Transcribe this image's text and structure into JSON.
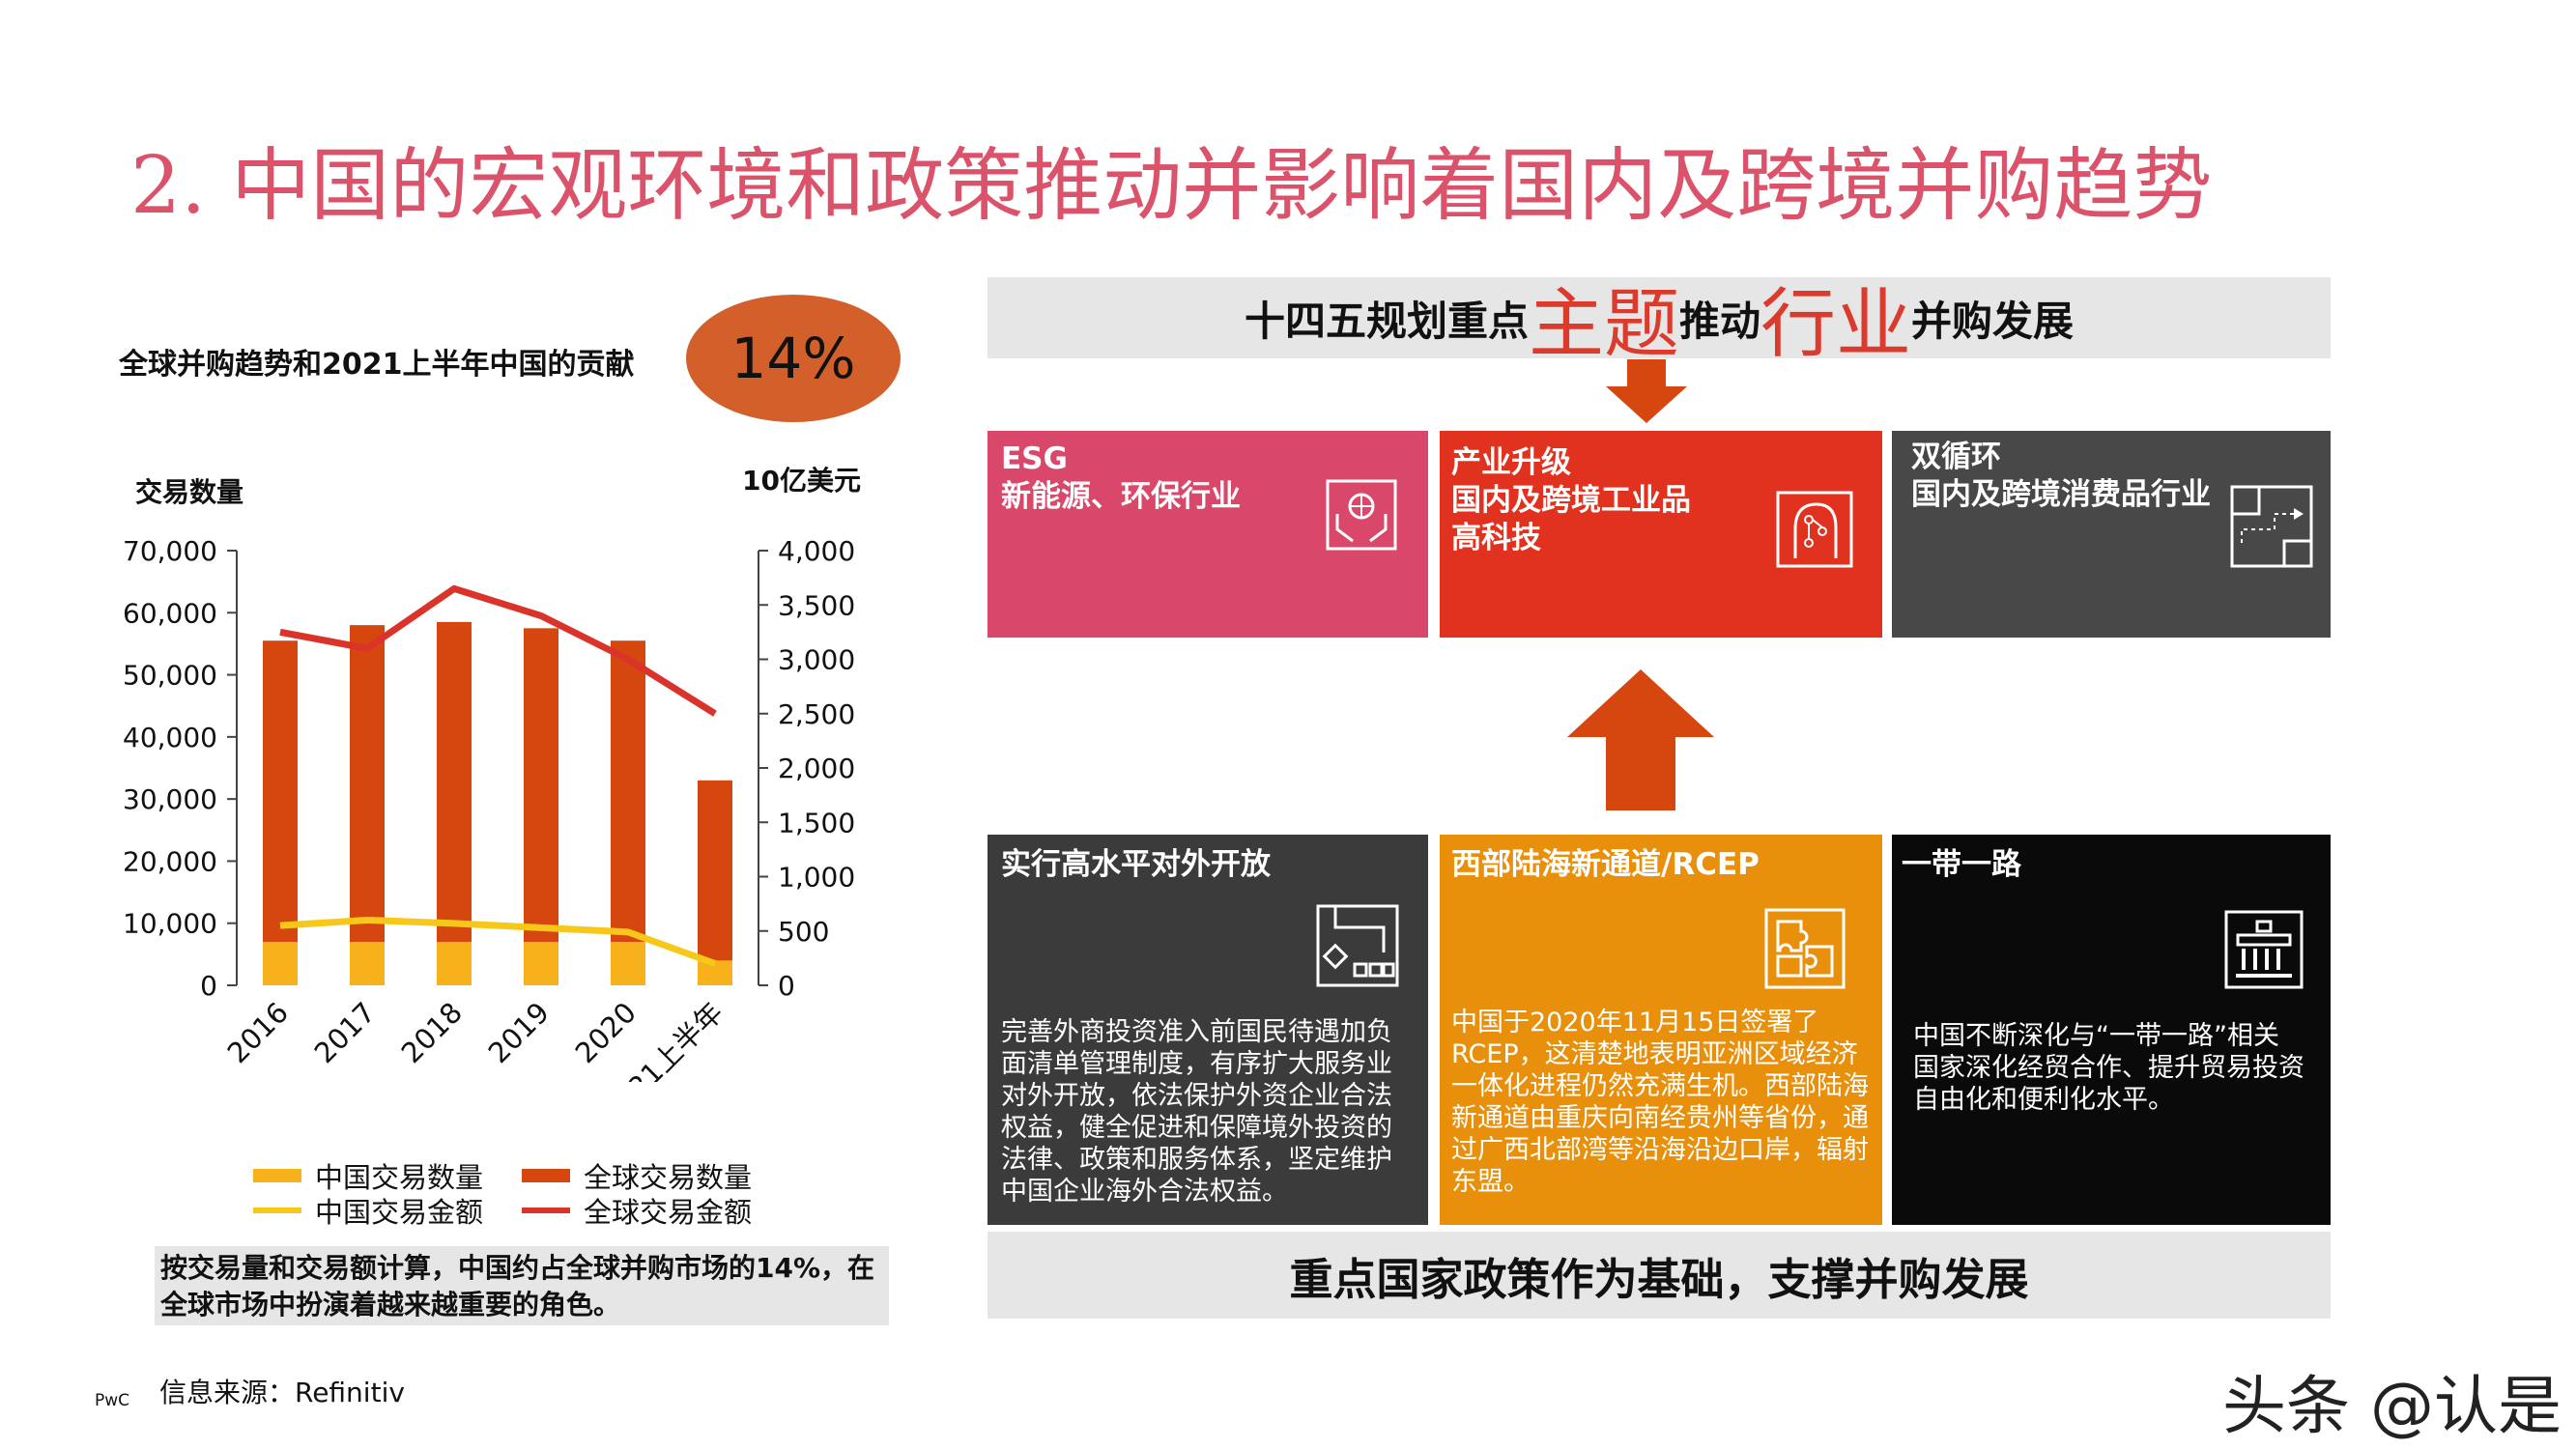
{
  "page": {
    "title": "2. 中国的宏观环境和政策推动并影响着国内及跨境并购趋势",
    "pwc": "PwC",
    "source": "信息来源：Refinitiv",
    "watermark": "头条 @认是"
  },
  "chart_panel": {
    "title": "全球并购趋势和2021上半年中国的贡献",
    "highlight": "14%",
    "left_axis_label": "交易数量",
    "right_axis_label": "10亿美元",
    "summary": "按交易量和交易额计算，中国约占全球并购市场的14%，在全球市场中扮演着越来越重要的角色。"
  },
  "chart_data": {
    "type": "bar",
    "title": "全球并购趋势和2021上半年中国的贡献",
    "categories": [
      "2016",
      "2017",
      "2018",
      "2019",
      "2020",
      "2021上半年"
    ],
    "ylabel": "交易数量",
    "y2label": "10亿美元",
    "ylim": [
      0,
      70000
    ],
    "y2lim": [
      0,
      4000
    ],
    "yticks": [
      "0",
      "10,000",
      "20,000",
      "30,000",
      "40,000",
      "50,000",
      "60,000",
      "70,000"
    ],
    "y2ticks": [
      "0",
      "500",
      "1,000",
      "1,500",
      "2,000",
      "2,500",
      "3,000",
      "3,500",
      "4,000"
    ],
    "series": [
      {
        "name": "中国交易数量",
        "kind": "bar",
        "axis": "left",
        "color": "#f7b21b",
        "values": [
          7000,
          7000,
          7000,
          7000,
          7000,
          4000
        ]
      },
      {
        "name": "全球交易数量",
        "kind": "bar",
        "axis": "left",
        "color": "#d5470f",
        "values": [
          55500,
          58000,
          58500,
          57500,
          55500,
          33000
        ]
      },
      {
        "name": "中国交易金额",
        "kind": "line",
        "axis": "right",
        "color": "#f7c81a",
        "values": [
          550,
          600,
          570,
          530,
          490,
          200
        ]
      },
      {
        "name": "全球交易金额",
        "kind": "line",
        "axis": "right",
        "color": "#d9332a",
        "values": [
          3250,
          3100,
          3650,
          3400,
          3000,
          2500
        ]
      }
    ],
    "legend_position": "bottom",
    "grid": false
  },
  "right_panel": {
    "top_banner": {
      "pre": "十四五规划重点",
      "big1": "主题",
      "mid": "推动",
      "big2": "行业",
      "post": "并购发展"
    },
    "bottom_banner": "重点国家政策作为基础，支撑并购发展",
    "top_boxes": [
      {
        "lines": [
          "ESG",
          "新能源、环保行业"
        ],
        "color": "#d9486a",
        "icon": "hands-globe-icon"
      },
      {
        "lines": [
          "产业升级",
          "国内及跨境工业品",
          "高科技"
        ],
        "color": "#e1311f",
        "icon": "circuit-head-icon"
      },
      {
        "lines": [
          "双循环",
          "国内及跨境消费品行业"
        ],
        "color": "#484848",
        "icon": "route-map-icon"
      }
    ],
    "bottom_boxes": [
      {
        "title": "实行高水平对外开放",
        "body": [
          "完善外商投资准入前国民待遇加负",
          "面清单管理制度，有序扩大服务业",
          "对外开放，依法保护外资企业合法",
          "权益，健全促进和保障境外投资的",
          "法律、政策和服务体系，坚定维护",
          "中国企业海外合法权益。"
        ],
        "color": "#3b3b3b",
        "icon": "crane-cargo-icon"
      },
      {
        "title": "西部陆海新通道/RCEP",
        "body": [
          "中国于2020年11月15日签署了",
          "RCEP，这清楚地表明亚洲区域经济",
          "一体化进程仍然充满生机。西部陆海",
          "新通道由重庆向南经贵州等省份，通",
          "过广西北部湾等沿海沿边口岸，辐射",
          "东盟。"
        ],
        "color": "#e8900c",
        "icon": "puzzle-icon"
      },
      {
        "title": "一带一路",
        "body": [
          "中国不断深化与“一带一路”相关",
          "国家深化经贸合作、提升贸易投资",
          "自由化和便利化水平。"
        ],
        "color": "#0a0a0a",
        "icon": "bank-icon"
      }
    ]
  }
}
